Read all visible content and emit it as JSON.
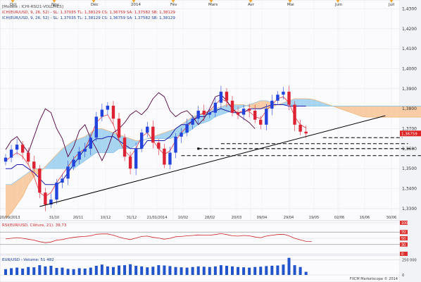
{
  "colors": {
    "price_up": "#2244dd",
    "price_down": "#dd2233",
    "tenkan": "#dd2222",
    "kijun": "#1a1aaa",
    "chikou": "#550044",
    "cloud_bull": "#9dd0ef",
    "cloud_bear": "#f7c89b",
    "trend": "#000000",
    "rsi": "#cc2222",
    "volume": "#2255cc",
    "current_price_bg": "#dd2222"
  },
  "legend": {
    "model": "[Modèle : ICHI-RSI21-VOLUMES]",
    "line1": "ICH(EUR/USD, 9, 26, 52) - SL: 1,37035  TL: 1,38129  CS: 1,36759  SA: 1,37582  SB: 1,38129",
    "line2": "ICH(EUR/USD, 9, 26, 52) - SL: 1,37035  TL: 1,38129  CS: 1,36759  SA: 1,37582  SB: 1,38129"
  },
  "rsi_legend": "RSI(EUR/USD, Clôture, 21): 39,73",
  "volume_legend": "EUR/USD - Volume: 51 482",
  "watermark": "FXCM Marketscope © 2014",
  "chart_data": [
    {
      "type": "candlestick",
      "title": "EUR/USD",
      "month_labels": [
        "Oct",
        "Nov",
        "Déc",
        "2014",
        "Fév",
        "Mars",
        "Avr",
        "Mai",
        "Juin",
        "Juil"
      ],
      "date_labels": [
        "20/09/2013",
        "31/10",
        "20/11",
        "10/12",
        "31/12",
        "21/01/2014",
        "10/02",
        "28/02",
        "20/03",
        "09/04",
        "29/04",
        "19/05",
        "02/06",
        "16/06",
        "30/06"
      ],
      "y_ticks": [
        "1,4300",
        "1,4200",
        "1,4100",
        "1,4000",
        "1,3900",
        "1,3800",
        "1,3700",
        "1,3600",
        "1,3500",
        "1,3400",
        "1,3300"
      ],
      "ylim": [
        1.325,
        1.433
      ],
      "current_price": 1.3676,
      "current_price_label": "1,36759",
      "closes": [
        1.3555,
        1.3595,
        1.362,
        1.358,
        1.3535,
        1.35,
        1.338,
        1.332,
        1.3345,
        1.343,
        1.345,
        1.351,
        1.3545,
        1.3585,
        1.36,
        1.3655,
        1.376,
        1.3795,
        1.3815,
        1.375,
        1.3655,
        1.356,
        1.35,
        1.36,
        1.368,
        1.371,
        1.363,
        1.36,
        1.352,
        1.358,
        1.366,
        1.368,
        1.372,
        1.375,
        1.379,
        1.377,
        1.378,
        1.383,
        1.3885,
        1.384,
        1.378,
        1.377,
        1.38,
        1.379,
        1.3745,
        1.372,
        1.38,
        1.384,
        1.387,
        1.3885,
        1.382,
        1.372,
        1.3685,
        1.3676
      ],
      "tenkan": [
        1.354,
        1.356,
        1.358,
        1.356,
        1.352,
        1.346,
        1.338,
        1.336,
        1.338,
        1.343,
        1.347,
        1.351,
        1.355,
        1.358,
        1.36,
        1.366,
        1.373,
        1.376,
        1.377,
        1.372,
        1.364,
        1.359,
        1.356,
        1.36,
        1.366,
        1.368,
        1.364,
        1.36,
        1.357,
        1.359,
        1.364,
        1.368,
        1.371,
        1.374,
        1.377,
        1.3775,
        1.379,
        1.382,
        1.385,
        1.3835,
        1.38,
        1.378,
        1.379,
        1.3785,
        1.376,
        1.375,
        1.379,
        1.382,
        1.385,
        1.386,
        1.383,
        1.376,
        1.372,
        1.3704
      ],
      "kijun": [
        1.35,
        1.35,
        1.352,
        1.352,
        1.35,
        1.348,
        1.345,
        1.342,
        1.342,
        1.342,
        1.344,
        1.348,
        1.352,
        1.356,
        1.36,
        1.363,
        1.365,
        1.365,
        1.366,
        1.366,
        1.364,
        1.362,
        1.36,
        1.36,
        1.36,
        1.364,
        1.364,
        1.364,
        1.364,
        1.366,
        1.37,
        1.372,
        1.372,
        1.374,
        1.376,
        1.376,
        1.378,
        1.379,
        1.38,
        1.379,
        1.378,
        1.378,
        1.378,
        1.38,
        1.38,
        1.38,
        1.381,
        1.382,
        1.382,
        1.382,
        1.3813,
        1.3813,
        1.3813,
        1.3813
      ],
      "chikou": [
        1.3595,
        1.364,
        1.366,
        1.362,
        1.358,
        1.366,
        1.374,
        1.38,
        1.378,
        1.37,
        1.365,
        1.356,
        1.361,
        1.369,
        1.372,
        1.365,
        1.36,
        1.354,
        1.36,
        1.368,
        1.37,
        1.373,
        1.377,
        1.379,
        1.377,
        1.38,
        1.385,
        1.388,
        1.386,
        1.379,
        1.376,
        1.378,
        1.379,
        1.376,
        1.372,
        1.375,
        1.38,
        1.386,
        1.387,
        1.384,
        1.38,
        1.377,
        1.375,
        1.373,
        1.37
      ],
      "senkou_a": [
        1.325,
        1.328,
        1.332,
        1.336,
        1.342,
        1.346,
        1.348,
        1.351,
        1.354,
        1.357,
        1.36,
        1.362,
        1.364,
        1.365,
        1.366,
        1.368,
        1.37,
        1.37,
        1.369,
        1.368,
        1.367,
        1.366,
        1.365,
        1.364,
        1.364,
        1.365,
        1.366,
        1.367,
        1.368,
        1.369,
        1.37,
        1.372,
        1.374,
        1.376,
        1.377,
        1.378,
        1.379,
        1.38,
        1.381,
        1.382,
        1.382,
        1.382,
        1.382,
        1.381,
        1.38,
        1.38,
        1.38,
        1.381,
        1.382,
        1.383,
        1.384,
        1.385,
        1.385,
        1.385,
        1.3848,
        1.384,
        1.383,
        1.382,
        1.381,
        1.38,
        1.379,
        1.378,
        1.377,
        1.376,
        1.3758,
        1.3758,
        1.3758,
        1.3758,
        1.3758,
        1.3758,
        1.3758,
        1.3758,
        1.3758,
        1.3758,
        1.3758,
        1.3758,
        1.3758,
        1.3758,
        1.3758,
        1.3758
      ],
      "senkou_b": [
        1.342,
        1.342,
        1.344,
        1.346,
        1.348,
        1.35,
        1.35,
        1.35,
        1.35,
        1.35,
        1.35,
        1.35,
        1.35,
        1.352,
        1.354,
        1.356,
        1.358,
        1.358,
        1.358,
        1.358,
        1.36,
        1.36,
        1.36,
        1.362,
        1.364,
        1.365,
        1.365,
        1.365,
        1.365,
        1.365,
        1.366,
        1.367,
        1.368,
        1.37,
        1.372,
        1.373,
        1.374,
        1.376,
        1.377,
        1.378,
        1.379,
        1.38,
        1.381,
        1.382,
        1.383,
        1.384,
        1.384,
        1.383,
        1.382,
        1.382,
        1.382,
        1.3813,
        1.3813,
        1.3813,
        1.3813,
        1.3813,
        1.3813,
        1.3813,
        1.3813,
        1.3813,
        1.3813,
        1.3813,
        1.3813,
        1.3813,
        1.3813,
        1.3813,
        1.3813,
        1.3813,
        1.3813,
        1.3813,
        1.3813,
        1.3813,
        1.3813,
        1.3813,
        1.3813,
        1.3813,
        1.3813,
        1.3813,
        1.3813,
        1.3813
      ],
      "trendline": [
        [
          6,
          1.331
        ],
        [
          67,
          1.3765
        ]
      ],
      "support_lines": [
        {
          "from": 56,
          "to": 70,
          "value": 1.3655
        },
        {
          "from": 38,
          "to": 71,
          "value": 1.3625
        },
        {
          "from": 34,
          "to": 72,
          "value": 1.36
        },
        {
          "from": 31,
          "to": 74,
          "value": 1.3565
        }
      ]
    },
    {
      "type": "line",
      "title": "RSI(EUR/USD, Clôture, 21)",
      "y_ticks": [
        "100",
        "70",
        "50",
        "30",
        "0"
      ],
      "ylim": [
        0,
        100
      ],
      "values": [
        48,
        50,
        52,
        50,
        47,
        44,
        39,
        36,
        38,
        44,
        46,
        50,
        53,
        55,
        56,
        58,
        63,
        64,
        64,
        60,
        54,
        49,
        46,
        51,
        56,
        57,
        53,
        51,
        47,
        50,
        55,
        56,
        58,
        59,
        61,
        60,
        60,
        62,
        65,
        62,
        58,
        57,
        59,
        58,
        54,
        52,
        57,
        60,
        62,
        63,
        58,
        50,
        45,
        40,
        39.73
      ]
    },
    {
      "type": "bar",
      "title": "EUR/USD - Volume",
      "y_ticks": [
        "250 000",
        "0"
      ],
      "ylim": [
        0,
        300000
      ],
      "values": [
        95000,
        110000,
        120000,
        105000,
        130000,
        125000,
        160000,
        140000,
        150000,
        115000,
        120000,
        100000,
        95000,
        110000,
        105000,
        120000,
        150000,
        170000,
        140000,
        130000,
        155000,
        160000,
        175000,
        150000,
        140000,
        125000,
        135000,
        160000,
        155000,
        145000,
        130000,
        125000,
        120000,
        130000,
        140000,
        135000,
        130000,
        140000,
        160000,
        150000,
        140000,
        130000,
        125000,
        120000,
        130000,
        135000,
        145000,
        150000,
        155000,
        170000,
        280000,
        160000,
        130000,
        51482
      ]
    }
  ]
}
